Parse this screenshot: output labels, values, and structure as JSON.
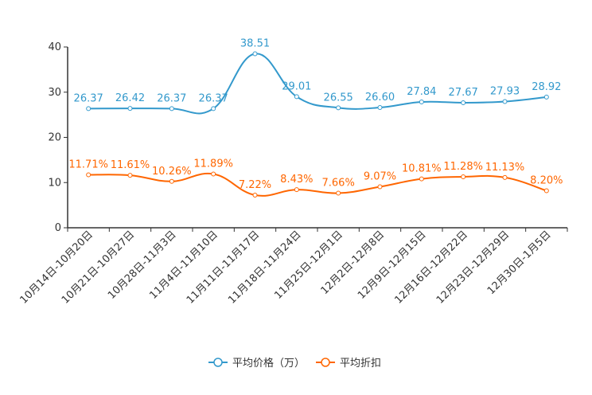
{
  "chart_data": {
    "type": "line",
    "categories": [
      "10月14日-10月20日",
      "10月21日-10月27日",
      "10月28日-11月3日",
      "11月4日-11月10日",
      "11月11日-11月17日",
      "11月18日-11月24日",
      "11月25日-12月1日",
      "12月2日-12月8日",
      "12月9日-12月15日",
      "12月16日-12月22日",
      "12月23日-12月29日",
      "12月30日-1月5日"
    ],
    "series": [
      {
        "name": "平均价格（万）",
        "color": "#3399cc",
        "values": [
          26.37,
          26.42,
          26.37,
          26.37,
          38.51,
          29.01,
          26.55,
          26.6,
          27.84,
          27.67,
          27.93,
          28.92
        ],
        "labels": [
          "26.37",
          "26.42",
          "26.37",
          "26.37",
          "38.51",
          "29.01",
          "26.55",
          "26.60",
          "27.84",
          "27.67",
          "27.93",
          "28.92"
        ]
      },
      {
        "name": "平均折扣",
        "color": "#ff6600",
        "values": [
          11.71,
          11.61,
          10.26,
          11.89,
          7.22,
          8.43,
          7.66,
          9.07,
          10.81,
          11.28,
          11.13,
          8.2
        ],
        "labels": [
          "11.71%",
          "11.61%",
          "10.26%",
          "11.89%",
          "7.22%",
          "8.43%",
          "7.66%",
          "9.07%",
          "10.81%",
          "11.28%",
          "11.13%",
          "8.20%"
        ]
      }
    ],
    "ylim": [
      0,
      40
    ],
    "yticks": [
      "0",
      "10",
      "20",
      "30",
      "40"
    ],
    "legend_position": "bottom-center"
  }
}
